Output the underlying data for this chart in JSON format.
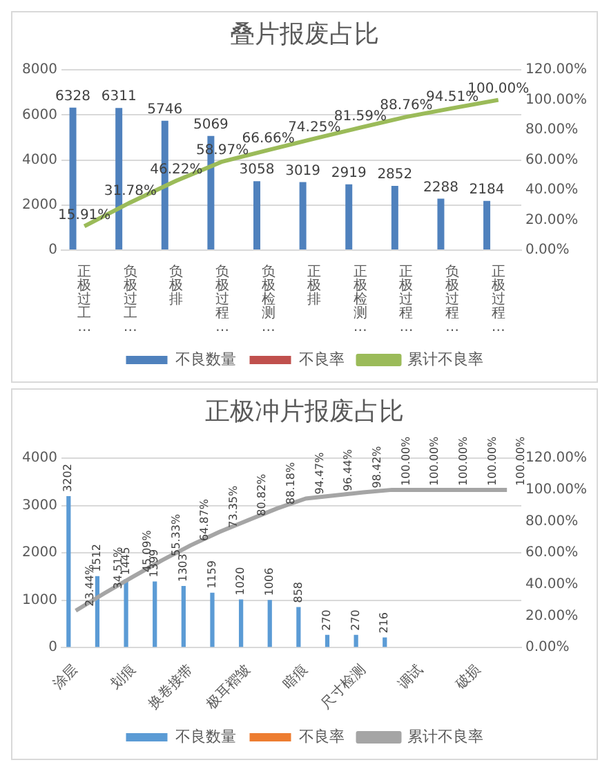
{
  "chart_data": [
    {
      "type": "bar",
      "title": "叠片报废占比",
      "categories": [
        "正极过工…",
        "负极过工…",
        "负极排",
        "负极过程…",
        "负极检测…",
        "正极排",
        "正极检测…",
        "正极过程…",
        "负极过程…",
        "正极过程…"
      ],
      "series": [
        {
          "name": "不良数量",
          "color": "#4f81bd",
          "values": [
            6328,
            6311,
            5746,
            5069,
            3058,
            3019,
            2919,
            2852,
            2288,
            2184
          ],
          "value_labels": [
            "6328",
            "6311",
            "5746",
            "5069",
            "3058",
            "3019",
            "2919",
            "2852",
            "2288",
            "2184"
          ]
        },
        {
          "name": "不良率",
          "color": "#c0504d",
          "values": [
            null,
            null,
            null,
            null,
            null,
            null,
            null,
            null,
            null,
            null
          ]
        },
        {
          "name": "累计不良率",
          "type": "line",
          "axis": "y2",
          "color": "#9bbb59",
          "values": [
            15.91,
            31.78,
            46.22,
            58.97,
            66.66,
            74.25,
            81.59,
            88.76,
            94.51,
            100
          ],
          "value_labels": [
            "15.91%",
            "31.78%",
            "46.22%",
            "58.97%",
            "66.66%",
            "74.25%",
            "81.59%",
            "88.76%",
            "94.51%",
            "100.00%"
          ]
        }
      ],
      "ylim": [
        0,
        8000
      ],
      "yticks": [
        0,
        2000,
        4000,
        6000,
        8000
      ],
      "y2lim": [
        0,
        120
      ],
      "y2ticks": [
        {
          "value": 0,
          "label": "0.00%"
        },
        {
          "value": 20,
          "label": "20.00%"
        },
        {
          "value": 40,
          "label": "40.00%"
        },
        {
          "value": 60,
          "label": "60.00%"
        },
        {
          "value": 80,
          "label": "80.00%"
        },
        {
          "value": 100,
          "label": "100.00%"
        },
        {
          "value": 120,
          "label": "120.00%"
        }
      ],
      "grid": "y",
      "legend": "bottom",
      "marker": "none",
      "line_style": "solid"
    },
    {
      "type": "bar",
      "title": "正极冲片报废占比",
      "categories": [
        "涂层",
        null,
        "划痕",
        null,
        "换卷接带",
        null,
        "极耳褶皱",
        null,
        "暗痕",
        null,
        "尺寸检测",
        null,
        "调试",
        null,
        "破损",
        null
      ],
      "series": [
        {
          "name": "不良数量",
          "color": "#5b9bd5",
          "values": [
            3202,
            1512,
            1445,
            1399,
            1303,
            1159,
            1020,
            1006,
            858,
            270,
            270,
            216,
            0,
            0,
            0,
            0
          ],
          "value_labels": [
            "3202",
            "1512",
            "1445",
            "1399",
            "1303",
            "1159",
            "1020",
            "1006",
            "858",
            "270",
            "270",
            "216",
            null,
            null,
            null,
            null
          ]
        },
        {
          "name": "不良率",
          "color": "#ed7d31",
          "values": [
            null,
            null,
            null,
            null,
            null,
            null,
            null,
            null,
            null,
            null,
            null,
            null,
            null,
            null,
            null,
            null
          ]
        },
        {
          "name": "累计不良率",
          "type": "line",
          "axis": "y2",
          "color": "#a5a5a5",
          "values": [
            23.44,
            34.51,
            45.09,
            55.33,
            64.87,
            73.35,
            80.82,
            88.18,
            94.47,
            96.44,
            98.42,
            100,
            100,
            100,
            100,
            100
          ],
          "value_labels": [
            "23.44%",
            "34.51%",
            "45.09%",
            "55.33%",
            "64.87%",
            "73.35%",
            "80.82%",
            "88.18%",
            "94.47%",
            "96.44%",
            "98.42%",
            "100.00%",
            "100.00%",
            "100.00%",
            "100.00%",
            "100.00%"
          ]
        }
      ],
      "ylim": [
        0,
        4000
      ],
      "yticks": [
        0,
        1000,
        2000,
        3000,
        4000
      ],
      "y2lim": [
        0,
        120
      ],
      "y2ticks": [
        {
          "value": 0,
          "label": "0.00%"
        },
        {
          "value": 20,
          "label": "20.00%"
        },
        {
          "value": 40,
          "label": "40.00%"
        },
        {
          "value": 60,
          "label": "60.00%"
        },
        {
          "value": 80,
          "label": "80.00%"
        },
        {
          "value": 100,
          "label": "100.00%"
        },
        {
          "value": 120,
          "label": "120.00%"
        }
      ],
      "grid": "y",
      "legend": "bottom",
      "marker": "none",
      "line_style": "solid"
    }
  ]
}
